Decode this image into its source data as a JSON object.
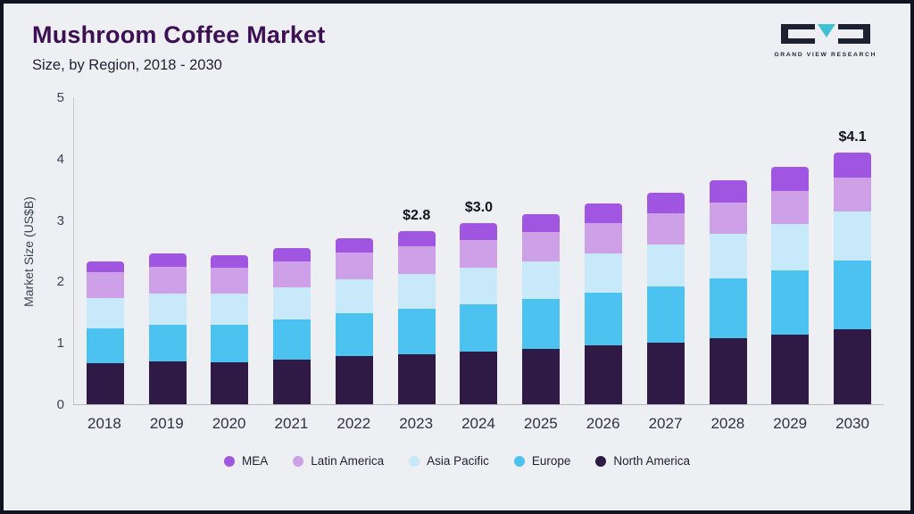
{
  "header": {
    "title": "Mushroom Coffee Market",
    "subtitle": "Size, by Region, 2018 - 2030",
    "logo_text": "GRAND VIEW RESEARCH"
  },
  "brand": {
    "logo_dark": "#1c2030",
    "logo_teal": "#3fc1d4"
  },
  "chart_data": {
    "type": "bar",
    "stacked": true,
    "title": "Mushroom Coffee Market Size, by Region, 2018 - 2030",
    "xlabel": "",
    "ylabel": "Market Size (US$B)",
    "ylim": [
      0,
      5
    ],
    "yticks": [
      "0",
      "1",
      "2",
      "3",
      "4",
      "5"
    ],
    "grid": false,
    "categories": [
      "2018",
      "2019",
      "2020",
      "2021",
      "2022",
      "2023",
      "2024",
      "2025",
      "2026",
      "2027",
      "2028",
      "2029",
      "2030"
    ],
    "series": [
      {
        "name": "North America",
        "color": "#2e1a45",
        "values": [
          0.67,
          0.7,
          0.69,
          0.73,
          0.78,
          0.82,
          0.86,
          0.9,
          0.96,
          1.01,
          1.07,
          1.13,
          1.22
        ]
      },
      {
        "name": "Europe",
        "color": "#4cc2f1",
        "values": [
          0.57,
          0.6,
          0.61,
          0.65,
          0.7,
          0.73,
          0.77,
          0.81,
          0.86,
          0.91,
          0.98,
          1.05,
          1.12
        ]
      },
      {
        "name": "Asia Pacific",
        "color": "#c7e9fa",
        "values": [
          0.49,
          0.51,
          0.5,
          0.52,
          0.55,
          0.57,
          0.59,
          0.62,
          0.64,
          0.68,
          0.72,
          0.76,
          0.8
        ]
      },
      {
        "name": "Latin America",
        "color": "#cda0e8",
        "values": [
          0.42,
          0.43,
          0.42,
          0.43,
          0.44,
          0.45,
          0.46,
          0.48,
          0.49,
          0.51,
          0.52,
          0.53,
          0.55
        ]
      },
      {
        "name": "MEA",
        "color": "#a156e2",
        "values": [
          0.18,
          0.21,
          0.21,
          0.22,
          0.23,
          0.25,
          0.27,
          0.29,
          0.32,
          0.34,
          0.36,
          0.4,
          0.41
        ]
      }
    ],
    "totals": [
      2.33,
      2.45,
      2.43,
      2.55,
      2.7,
      2.82,
      2.95,
      3.1,
      3.27,
      3.45,
      3.65,
      3.87,
      4.1
    ],
    "annotations": {
      "2023": "$2.8",
      "2024": "$3.0",
      "2030": "$4.1"
    },
    "legend": {
      "position": "bottom",
      "order": [
        "MEA",
        "Latin America",
        "Asia Pacific",
        "Europe",
        "North America"
      ]
    }
  }
}
